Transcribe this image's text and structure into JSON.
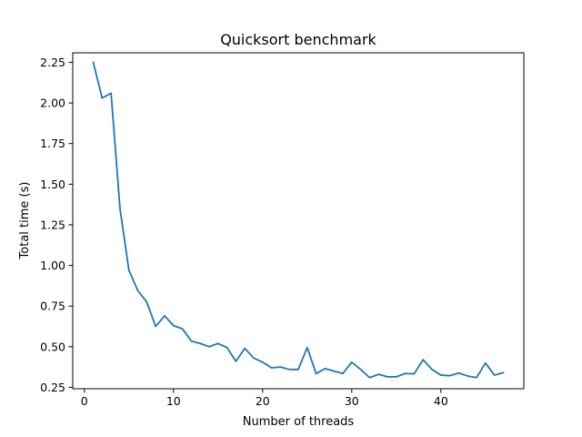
{
  "chart_data": {
    "type": "line",
    "title": "Quicksort benchmark",
    "xlabel": "Number of threads",
    "ylabel": "Total time (s)",
    "xlim": [
      -1.3,
      49.3
    ],
    "ylim": [
      0.2413,
      2.3087
    ],
    "xticks": [
      0,
      10,
      20,
      30,
      40
    ],
    "xtick_labels": [
      "0",
      "10",
      "20",
      "30",
      "40"
    ],
    "yticks": [
      0.25,
      0.5,
      0.75,
      1.0,
      1.25,
      1.5,
      1.75,
      2.0,
      2.25
    ],
    "ytick_labels": [
      "0.25",
      "0.50",
      "0.75",
      "1.00",
      "1.25",
      "1.50",
      "1.75",
      "2.00",
      "2.25"
    ],
    "grid": false,
    "series": [
      {
        "color": "#1f77b4",
        "x": [
          1,
          2,
          3,
          4,
          5,
          6,
          7,
          8,
          9,
          10,
          11,
          12,
          13,
          14,
          15,
          16,
          17,
          18,
          19,
          20,
          21,
          22,
          23,
          24,
          25,
          26,
          27,
          28,
          29,
          30,
          31,
          32,
          33,
          34,
          35,
          36,
          37,
          38,
          39,
          40,
          41,
          42,
          43,
          44,
          45,
          46,
          47
        ],
        "y": [
          2.25,
          2.03,
          2.06,
          1.35,
          0.97,
          0.845,
          0.775,
          0.625,
          0.69,
          0.63,
          0.61,
          0.535,
          0.52,
          0.5,
          0.52,
          0.495,
          0.41,
          0.49,
          0.43,
          0.405,
          0.37,
          0.375,
          0.36,
          0.36,
          0.495,
          0.335,
          0.365,
          0.35,
          0.335,
          0.405,
          0.36,
          0.31,
          0.33,
          0.315,
          0.315,
          0.335,
          0.333,
          0.42,
          0.36,
          0.325,
          0.322,
          0.338,
          0.32,
          0.31,
          0.4,
          0.325,
          0.34
        ]
      }
    ]
  }
}
